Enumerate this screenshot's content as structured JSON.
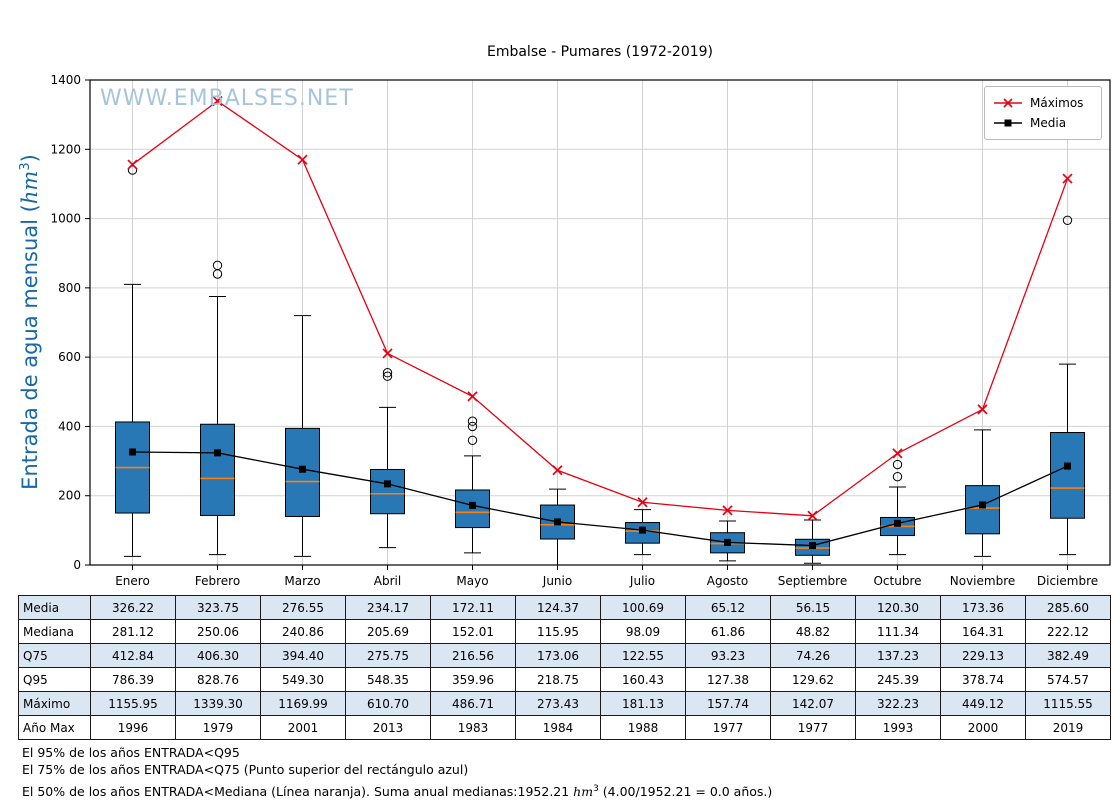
{
  "labels": {
    "title": "Embalse - Pumares (1972-2019)",
    "watermark": "WWW.EMBALSES.NET",
    "ylabel_prefix": "Entrada de agua mensual (",
    "ylabel_unit": "hm",
    "ylabel_exp": "3",
    "ylabel_suffix": ")"
  },
  "legend": {
    "entries": [
      {
        "label": "Máximos",
        "color": "#e60012",
        "marker": "x"
      },
      {
        "label": "Media",
        "color": "#000000",
        "marker": "square"
      }
    ]
  },
  "chart_data": {
    "type": "boxplot",
    "title": "Embalse - Pumares (1972-2019)",
    "ylabel": "Entrada de agua mensual (hm3)",
    "ylim": [
      0,
      1400
    ],
    "yticks": [
      0,
      200,
      400,
      600,
      800,
      1000,
      1200,
      1400
    ],
    "grid": true,
    "box_color": "#2778b5",
    "median_color": "#ff7f0e",
    "categories": [
      "Enero",
      "Febrero",
      "Marzo",
      "Abril",
      "Mayo",
      "Junio",
      "Julio",
      "Agosto",
      "Septiembre",
      "Octubre",
      "Noviembre",
      "Diciembre"
    ],
    "series": [
      {
        "name": "Máximos",
        "color": "#e60012",
        "marker": "x",
        "values": [
          1155.95,
          1339.3,
          1169.99,
          610.7,
          486.71,
          273.43,
          181.13,
          157.74,
          142.07,
          322.23,
          449.12,
          1115.55
        ]
      },
      {
        "name": "Media",
        "color": "#000000",
        "marker": "square",
        "values": [
          326.22,
          323.75,
          276.55,
          234.17,
          172.11,
          124.37,
          100.69,
          65.12,
          56.15,
          120.3,
          173.36,
          285.6
        ]
      }
    ],
    "boxes": [
      {
        "month": "Enero",
        "whisker_low": 25,
        "q1": 150,
        "median": 281.12,
        "q3": 412.84,
        "whisker_high": 810,
        "outliers": [
          1140
        ]
      },
      {
        "month": "Febrero",
        "whisker_low": 30,
        "q1": 143,
        "median": 250.06,
        "q3": 406.3,
        "whisker_high": 775,
        "outliers": [
          840,
          865
        ]
      },
      {
        "month": "Marzo",
        "whisker_low": 25,
        "q1": 140,
        "median": 240.86,
        "q3": 394.4,
        "whisker_high": 720,
        "outliers": []
      },
      {
        "month": "Abril",
        "whisker_low": 50,
        "q1": 148,
        "median": 205.69,
        "q3": 275.75,
        "whisker_high": 455,
        "outliers": [
          545,
          555
        ]
      },
      {
        "month": "Mayo",
        "whisker_low": 35,
        "q1": 108,
        "median": 152.01,
        "q3": 216.56,
        "whisker_high": 315,
        "outliers": [
          360,
          400,
          415
        ]
      },
      {
        "month": "Junio",
        "whisker_low": 0,
        "q1": 75,
        "median": 115.95,
        "q3": 173.06,
        "whisker_high": 219,
        "outliers": []
      },
      {
        "month": "Julio",
        "whisker_low": 30,
        "q1": 63,
        "median": 98.09,
        "q3": 122.55,
        "whisker_high": 160,
        "outliers": []
      },
      {
        "month": "Agosto",
        "whisker_low": 12,
        "q1": 35,
        "median": 61.86,
        "q3": 93.23,
        "whisker_high": 127,
        "outliers": []
      },
      {
        "month": "Septiembre",
        "whisker_low": 5,
        "q1": 28,
        "median": 48.82,
        "q3": 74.26,
        "whisker_high": 130,
        "outliers": []
      },
      {
        "month": "Octubre",
        "whisker_low": 30,
        "q1": 85,
        "median": 111.34,
        "q3": 137.23,
        "whisker_high": 225,
        "outliers": [
          255,
          290
        ]
      },
      {
        "month": "Noviembre",
        "whisker_low": 25,
        "q1": 90,
        "median": 164.31,
        "q3": 229.13,
        "whisker_high": 390,
        "outliers": []
      },
      {
        "month": "Diciembre",
        "whisker_low": 30,
        "q1": 135,
        "median": 222.12,
        "q3": 382.49,
        "whisker_high": 580,
        "outliers": [
          995
        ]
      }
    ]
  },
  "table": {
    "row_headers": [
      "Media",
      "Mediana",
      "Q75",
      "Q95",
      "Máximo",
      "Año Max"
    ],
    "columns": [
      "Enero",
      "Febrero",
      "Marzo",
      "Abril",
      "Mayo",
      "Junio",
      "Julio",
      "Agosto",
      "Septiembre",
      "Octubre",
      "Noviembre",
      "Diciembre"
    ],
    "rows": [
      [
        "326.22",
        "323.75",
        "276.55",
        "234.17",
        "172.11",
        "124.37",
        "100.69",
        "65.12",
        "56.15",
        "120.30",
        "173.36",
        "285.60"
      ],
      [
        "281.12",
        "250.06",
        "240.86",
        "205.69",
        "152.01",
        "115.95",
        "98.09",
        "61.86",
        "48.82",
        "111.34",
        "164.31",
        "222.12"
      ],
      [
        "412.84",
        "406.30",
        "394.40",
        "275.75",
        "216.56",
        "173.06",
        "122.55",
        "93.23",
        "74.26",
        "137.23",
        "229.13",
        "382.49"
      ],
      [
        "786.39",
        "828.76",
        "549.30",
        "548.35",
        "359.96",
        "218.75",
        "160.43",
        "127.38",
        "129.62",
        "245.39",
        "378.74",
        "574.57"
      ],
      [
        "1155.95",
        "1339.30",
        "1169.99",
        "610.70",
        "486.71",
        "273.43",
        "181.13",
        "157.74",
        "142.07",
        "322.23",
        "449.12",
        "1115.55"
      ],
      [
        "1996",
        "1979",
        "2001",
        "2013",
        "1983",
        "1984",
        "1988",
        "1977",
        "1977",
        "1993",
        "2000",
        "2019"
      ]
    ]
  },
  "footnotes": {
    "line1": "El 95% de los años ENTRADA<Q95",
    "line2": "El 75% de los años ENTRADA<Q75 (Punto superior del rectángulo azul)",
    "line3_pre": "El 50% de los años ENTRADA<Mediana (Línea naranja). Suma anual medianas:1952.21 ",
    "line3_unit": "hm",
    "line3_exp": "3",
    "line3_post": " (4.00/1952.21 = 0.0 años.)"
  }
}
